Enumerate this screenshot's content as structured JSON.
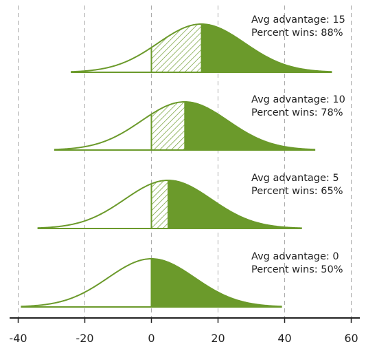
{
  "chart_data": {
    "type": "area",
    "title": "",
    "xlabel": "",
    "ylabel": "",
    "xlim": [
      -42,
      62
    ],
    "x_ticks": [
      -40,
      -20,
      0,
      20,
      40,
      60
    ],
    "x_tick_labels": [
      "-40",
      "-20",
      "0",
      "20",
      "40",
      "60"
    ],
    "grid": "vertical-dashed",
    "series": [
      {
        "mean": 15,
        "range": [
          -24,
          54
        ],
        "annotation_line1": "Avg advantage: 15",
        "annotation_line2": "Percent wins: 88%"
      },
      {
        "mean": 10,
        "range": [
          -29,
          49
        ],
        "annotation_line1": "Avg advantage: 10",
        "annotation_line2": "Percent wins: 78%"
      },
      {
        "mean": 5,
        "range": [
          -34,
          45
        ],
        "annotation_line1": "Avg advantage: 5",
        "annotation_line2": "Percent wins: 65%"
      },
      {
        "mean": 0,
        "range": [
          -39,
          39
        ],
        "annotation_line1": "Avg advantage: 0",
        "annotation_line2": "Percent wins: 50%"
      }
    ],
    "colors": {
      "fill": "#6b9a2b",
      "stroke": "#6b9a2b",
      "grid": "#a9a9a9",
      "axis": "#222222"
    }
  }
}
